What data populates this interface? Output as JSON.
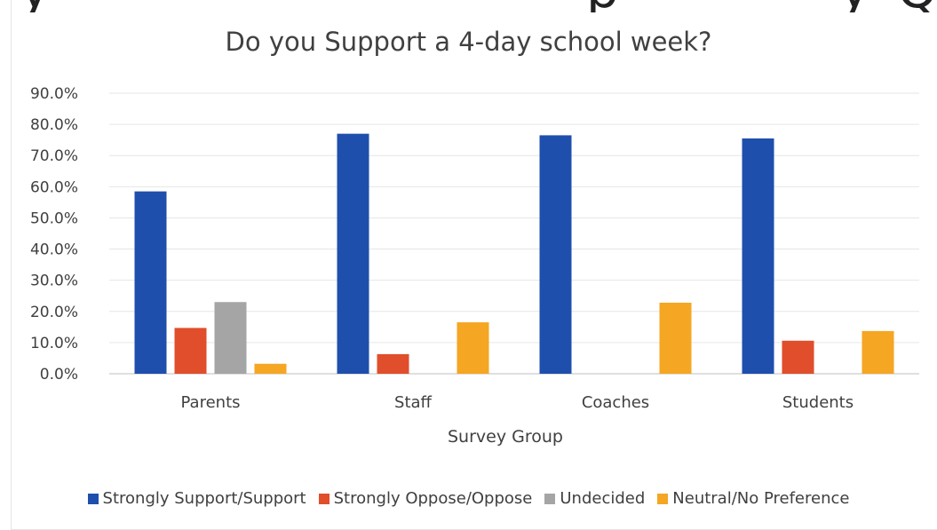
{
  "chart_data": {
    "type": "bar",
    "title": "Do you Support a 4-day school week?",
    "xlabel": "Survey Group",
    "ylabel": "",
    "ylim": [
      0,
      90
    ],
    "yticks": [
      "0.0%",
      "10.0%",
      "20.0%",
      "30.0%",
      "40.0%",
      "50.0%",
      "60.0%",
      "70.0%",
      "80.0%",
      "90.0%"
    ],
    "categories": [
      "Parents",
      "Staff",
      "Coaches",
      "Students"
    ],
    "series": [
      {
        "name": "Strongly Support/Support",
        "color": "#1f4fad",
        "values": [
          58.5,
          77.0,
          76.5,
          75.5
        ]
      },
      {
        "name": "Strongly Oppose/Oppose",
        "color": "#e04e2b",
        "values": [
          14.7,
          6.3,
          0,
          10.6
        ]
      },
      {
        "name": "Undecided",
        "color": "#a5a5a5",
        "values": [
          23.0,
          0,
          0,
          0
        ]
      },
      {
        "name": "Neutral/No Preference",
        "color": "#f5a623",
        "values": [
          3.2,
          16.5,
          22.8,
          13.7
        ]
      }
    ],
    "grid": true,
    "legend_position": "bottom"
  }
}
